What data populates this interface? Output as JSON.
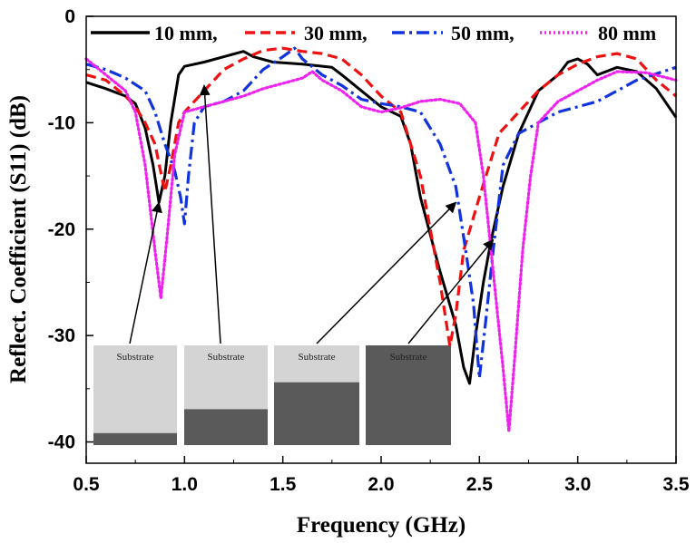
{
  "chart_data": {
    "type": "line",
    "xlabel": "Frequency (GHz)",
    "ylabel": "Reflect. Coefficient (S11) (dB)",
    "xlim": [
      0.5,
      3.5
    ],
    "ylim": [
      -42,
      0
    ],
    "xticks": [
      "0.5",
      "1.0",
      "1.5",
      "2.0",
      "2.5",
      "3.0",
      "3.5"
    ],
    "yticks": [
      "0",
      "-10",
      "-20",
      "-30",
      "-40"
    ],
    "grid": false,
    "legend_position": "top",
    "series": [
      {
        "name": "10 mm,",
        "color": "#000000",
        "style": "solid",
        "points": [
          [
            0.5,
            -6.2
          ],
          [
            0.6,
            -6.8
          ],
          [
            0.7,
            -7.5
          ],
          [
            0.75,
            -8.2
          ],
          [
            0.8,
            -10.5
          ],
          [
            0.84,
            -14
          ],
          [
            0.87,
            -17.5
          ],
          [
            0.9,
            -15
          ],
          [
            0.93,
            -10
          ],
          [
            0.97,
            -5.5
          ],
          [
            1.0,
            -4.7
          ],
          [
            1.1,
            -4.3
          ],
          [
            1.2,
            -3.8
          ],
          [
            1.3,
            -3.3
          ],
          [
            1.35,
            -3.8
          ],
          [
            1.45,
            -4.3
          ],
          [
            1.6,
            -4.5
          ],
          [
            1.75,
            -4.8
          ],
          [
            1.8,
            -5.5
          ],
          [
            1.9,
            -7
          ],
          [
            2.0,
            -8.5
          ],
          [
            2.1,
            -9.4
          ],
          [
            2.15,
            -12
          ],
          [
            2.2,
            -17
          ],
          [
            2.3,
            -24
          ],
          [
            2.38,
            -29
          ],
          [
            2.42,
            -33
          ],
          [
            2.45,
            -34.5
          ],
          [
            2.48,
            -30
          ],
          [
            2.52,
            -25
          ],
          [
            2.56,
            -21
          ],
          [
            2.62,
            -16
          ],
          [
            2.7,
            -11
          ],
          [
            2.8,
            -7
          ],
          [
            2.9,
            -5.5
          ],
          [
            2.95,
            -4.3
          ],
          [
            3.0,
            -4
          ],
          [
            3.05,
            -4.5
          ],
          [
            3.1,
            -5.5
          ],
          [
            3.2,
            -4.8
          ],
          [
            3.3,
            -5.2
          ],
          [
            3.4,
            -6.8
          ],
          [
            3.5,
            -9.5
          ]
        ]
      },
      {
        "name": "30 mm,",
        "color": "#ee1111",
        "style": "dashed",
        "points": [
          [
            0.5,
            -5.5
          ],
          [
            0.6,
            -6
          ],
          [
            0.7,
            -7.5
          ],
          [
            0.75,
            -8.5
          ],
          [
            0.8,
            -10
          ],
          [
            0.85,
            -12
          ],
          [
            0.9,
            -16.5
          ],
          [
            0.93,
            -14
          ],
          [
            0.97,
            -10
          ],
          [
            1.0,
            -9
          ],
          [
            1.1,
            -7
          ],
          [
            1.2,
            -5
          ],
          [
            1.3,
            -4
          ],
          [
            1.4,
            -3.2
          ],
          [
            1.5,
            -3
          ],
          [
            1.6,
            -3.3
          ],
          [
            1.7,
            -3.5
          ],
          [
            1.8,
            -4
          ],
          [
            1.9,
            -5.5
          ],
          [
            2.0,
            -7.5
          ],
          [
            2.1,
            -9
          ],
          [
            2.2,
            -15
          ],
          [
            2.3,
            -25
          ],
          [
            2.35,
            -31
          ],
          [
            2.38,
            -28
          ],
          [
            2.42,
            -22
          ],
          [
            2.5,
            -17
          ],
          [
            2.55,
            -14
          ],
          [
            2.6,
            -11
          ],
          [
            2.7,
            -9
          ],
          [
            2.8,
            -7
          ],
          [
            2.9,
            -5.5
          ],
          [
            3.0,
            -4.5
          ],
          [
            3.1,
            -3.8
          ],
          [
            3.2,
            -3.5
          ],
          [
            3.3,
            -4
          ],
          [
            3.4,
            -6
          ],
          [
            3.5,
            -7.5
          ]
        ]
      },
      {
        "name": "50 mm,",
        "color": "#1133dd",
        "style": "dashdot",
        "points": [
          [
            0.5,
            -4.5
          ],
          [
            0.6,
            -5
          ],
          [
            0.7,
            -5.8
          ],
          [
            0.8,
            -7
          ],
          [
            0.85,
            -9
          ],
          [
            0.9,
            -12
          ],
          [
            0.95,
            -14.5
          ],
          [
            0.98,
            -17
          ],
          [
            1.0,
            -19.5
          ],
          [
            1.02,
            -15
          ],
          [
            1.05,
            -10
          ],
          [
            1.1,
            -8.5
          ],
          [
            1.2,
            -8
          ],
          [
            1.3,
            -7
          ],
          [
            1.4,
            -5
          ],
          [
            1.5,
            -3.8
          ],
          [
            1.56,
            -3
          ],
          [
            1.6,
            -4
          ],
          [
            1.7,
            -5.5
          ],
          [
            1.8,
            -6.5
          ],
          [
            1.9,
            -7.8
          ],
          [
            2.0,
            -8.2
          ],
          [
            2.1,
            -8.5
          ],
          [
            2.2,
            -9
          ],
          [
            2.3,
            -12
          ],
          [
            2.38,
            -16
          ],
          [
            2.43,
            -22
          ],
          [
            2.47,
            -27
          ],
          [
            2.5,
            -34
          ],
          [
            2.53,
            -29
          ],
          [
            2.57,
            -22
          ],
          [
            2.62,
            -14
          ],
          [
            2.7,
            -11
          ],
          [
            2.8,
            -10
          ],
          [
            2.9,
            -9
          ],
          [
            3.0,
            -8.5
          ],
          [
            3.1,
            -8
          ],
          [
            3.2,
            -7
          ],
          [
            3.3,
            -6
          ],
          [
            3.5,
            -4.8
          ]
        ]
      },
      {
        "name": "80 mm",
        "color": "#ee22ee",
        "style": "dotted",
        "points": [
          [
            0.5,
            -4
          ],
          [
            0.6,
            -5.5
          ],
          [
            0.7,
            -7
          ],
          [
            0.75,
            -9
          ],
          [
            0.8,
            -14
          ],
          [
            0.85,
            -22
          ],
          [
            0.88,
            -26.5
          ],
          [
            0.91,
            -21
          ],
          [
            0.95,
            -13
          ],
          [
            1.0,
            -9
          ],
          [
            1.1,
            -8.5
          ],
          [
            1.2,
            -8
          ],
          [
            1.3,
            -7.5
          ],
          [
            1.4,
            -6.8
          ],
          [
            1.5,
            -6.3
          ],
          [
            1.6,
            -5.8
          ],
          [
            1.65,
            -5.2
          ],
          [
            1.7,
            -6
          ],
          [
            1.8,
            -7
          ],
          [
            1.9,
            -8.5
          ],
          [
            2.0,
            -9
          ],
          [
            2.1,
            -8.6
          ],
          [
            2.2,
            -8
          ],
          [
            2.3,
            -7.8
          ],
          [
            2.4,
            -8.2
          ],
          [
            2.48,
            -10
          ],
          [
            2.52,
            -15
          ],
          [
            2.57,
            -24
          ],
          [
            2.62,
            -33
          ],
          [
            2.65,
            -39
          ],
          [
            2.68,
            -32
          ],
          [
            2.72,
            -22
          ],
          [
            2.76,
            -15
          ],
          [
            2.8,
            -10
          ],
          [
            2.9,
            -8
          ],
          [
            3.0,
            -7
          ],
          [
            3.1,
            -6
          ],
          [
            3.2,
            -5.2
          ],
          [
            3.35,
            -5.3
          ],
          [
            3.5,
            -6
          ]
        ]
      }
    ],
    "insets": [
      {
        "label": "Substrate",
        "fill_fraction": 0.12
      },
      {
        "label": "Substrate",
        "fill_fraction": 0.36
      },
      {
        "label": "Substrate",
        "fill_fraction": 0.63
      },
      {
        "label": "Substrate",
        "fill_fraction": 1.0
      }
    ],
    "inset_colors": {
      "substrate": "#d4d4d4",
      "metal": "#5a5a5a"
    },
    "arrows": [
      {
        "from_inset": 0,
        "to": [
          0.87,
          -17.5
        ]
      },
      {
        "from_inset": 1,
        "to": [
          1.1,
          -6.5
        ]
      },
      {
        "from_inset": 2,
        "to": [
          2.38,
          -17.5
        ]
      },
      {
        "from_inset": 3,
        "to": [
          2.57,
          -21
        ]
      }
    ]
  }
}
